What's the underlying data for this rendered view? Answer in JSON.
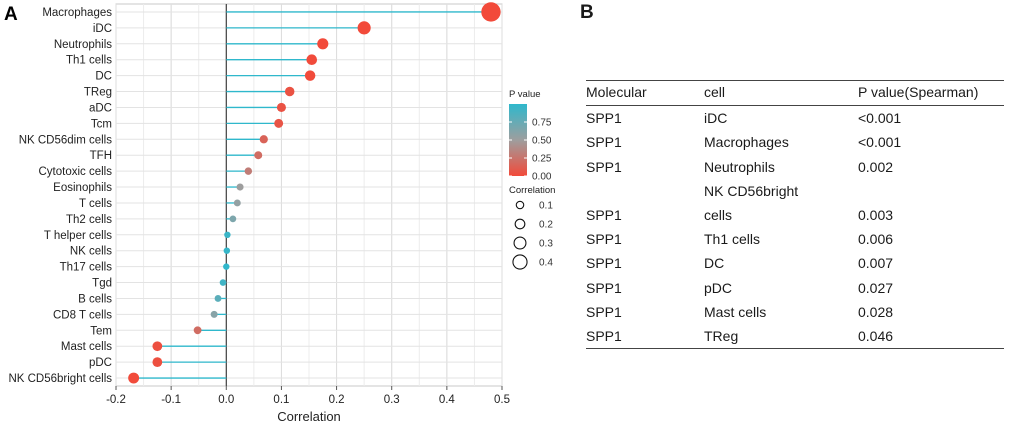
{
  "panel_a": {
    "letter": "A"
  },
  "panel_b": {
    "letter": "B"
  },
  "chart_data": {
    "type": "lollipop",
    "xlabel": "Correlation",
    "xlim": [
      -0.2,
      0.5
    ],
    "xticks": [
      -0.2,
      -0.1,
      0.0,
      0.1,
      0.2,
      0.3,
      0.4,
      0.5
    ],
    "xtick_labels": [
      "-0.2",
      "-0.1",
      "0.0",
      "0.1",
      "0.2",
      "0.3",
      "0.4",
      "0.5"
    ],
    "grid": true,
    "categories": [
      "Macrophages",
      "iDC",
      "Neutrophils",
      "Th1 cells",
      "DC",
      "TReg",
      "aDC",
      "Tcm",
      "NK CD56dim cells",
      "TFH",
      "Cytotoxic cells",
      "Eosinophils",
      "T cells",
      "Th2 cells",
      "T helper cells",
      "NK cells",
      "Th17 cells",
      "Tgd",
      "B cells",
      "CD8 T cells",
      "Tem",
      "Mast cells",
      "pDC",
      "NK CD56bright cells"
    ],
    "correlation": [
      0.48,
      0.25,
      0.175,
      0.155,
      0.152,
      0.115,
      0.1,
      0.095,
      0.068,
      0.058,
      0.04,
      0.025,
      0.02,
      0.012,
      0.002,
      0.001,
      0.0,
      -0.006,
      -0.015,
      -0.022,
      -0.052,
      -0.125,
      -0.125,
      -0.168
    ],
    "p_value": [
      0.0,
      0.0,
      0.002,
      0.006,
      0.007,
      0.046,
      0.05,
      0.06,
      0.15,
      0.2,
      0.3,
      0.5,
      0.55,
      0.65,
      0.95,
      0.97,
      0.99,
      0.92,
      0.8,
      0.6,
      0.2,
      0.028,
      0.027,
      0.003
    ],
    "color_legend": {
      "title": "P value",
      "ticks": [
        "0.75",
        "0.50",
        "0.25",
        "0.00"
      ],
      "low_color": "#f24a3a",
      "mid_color": "#9e9e9e",
      "high_color": "#2fb8cc"
    },
    "size_legend": {
      "title": "Correlation",
      "values": [
        0.1,
        0.2,
        0.3,
        0.4
      ],
      "labels": [
        "0.1",
        "0.2",
        "0.3",
        "0.4"
      ]
    },
    "stem_color": "#2fb8cc"
  },
  "table": {
    "headers": [
      "Molecular",
      "cell",
      "P value(Spearman)"
    ],
    "rows": [
      {
        "molecular": "SPP1",
        "cell": "iDC",
        "cell_line2": "",
        "p": "<0.001"
      },
      {
        "molecular": "SPP1",
        "cell": "Macrophages",
        "cell_line2": "",
        "p": "<0.001"
      },
      {
        "molecular": "SPP1",
        "cell": "Neutrophils",
        "cell_line2": "",
        "p": "0.002"
      },
      {
        "molecular": "SPP1",
        "cell": "NK CD56bright",
        "cell_line2": "cells",
        "p": "0.003"
      },
      {
        "molecular": "SPP1",
        "cell": "Th1 cells",
        "cell_line2": "",
        "p": "0.006"
      },
      {
        "molecular": "SPP1",
        "cell": "DC",
        "cell_line2": "",
        "p": "0.007"
      },
      {
        "molecular": "SPP1",
        "cell": "pDC",
        "cell_line2": "",
        "p": "0.027"
      },
      {
        "molecular": "SPP1",
        "cell": "Mast cells",
        "cell_line2": "",
        "p": "0.028"
      },
      {
        "molecular": "SPP1",
        "cell": "TReg",
        "cell_line2": "",
        "p": "0.046"
      }
    ]
  }
}
